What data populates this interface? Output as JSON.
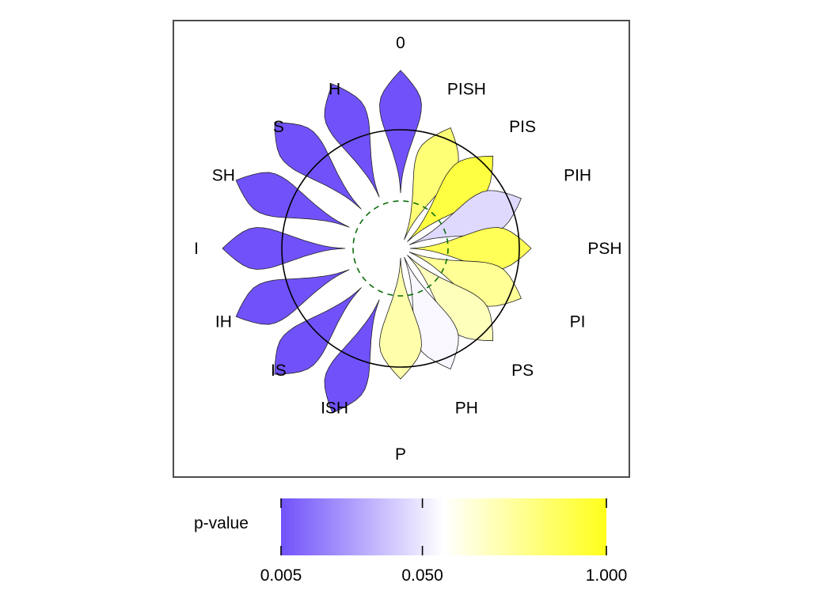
{
  "chart_data": {
    "type": "radial-violin",
    "categories": [
      "0",
      "PISH",
      "PIS",
      "PIH",
      "PSH",
      "PI",
      "PS",
      "PH",
      "P",
      "ISH",
      "IS",
      "IH",
      "I",
      "SH",
      "S",
      "H"
    ],
    "p_values": [
      0.005,
      0.3,
      0.6,
      0.03,
      0.45,
      0.2,
      0.12,
      0.045,
      0.15,
      0.005,
      0.005,
      0.005,
      0.005,
      0.005,
      0.005,
      0.005
    ],
    "legend": {
      "title": "p-value",
      "scale": "log",
      "ticks": [
        "0.005",
        "0.050",
        "1.000"
      ],
      "tick_values": [
        0.005,
        0.05,
        1.0
      ],
      "colors": {
        "low": "#7152FA",
        "mid": "#FFFFFF",
        "high": "#FFFF1A"
      }
    },
    "reference_circle": {
      "style": "solid",
      "color": "#000000"
    },
    "threshold_circle": {
      "style": "dashed",
      "color": "#0A6E0A"
    },
    "frame": true
  }
}
